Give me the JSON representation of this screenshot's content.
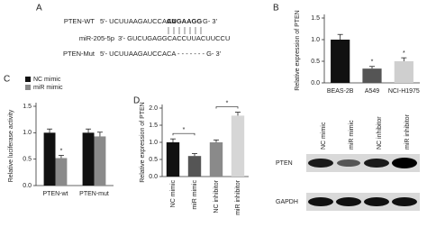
{
  "panel_a": {
    "label": "A",
    "rows": [
      {
        "name": "PTEN-WT",
        "parts": [
          "5'- UCUUAAGAUCCACA",
          "AUGAAGG",
          "G- 3'"
        ]
      },
      {
        "name": "miR-205-5p",
        "parts": [
          "3'- GUCUGAGGCACCUUACUUCCU"
        ]
      },
      {
        "name": "PTEN-Mut",
        "parts": [
          "5'- UCUUAAGAUCCACA - - - - - - - G- 3'"
        ]
      }
    ]
  },
  "chart_data": [
    {
      "type": "bar",
      "label": "B",
      "ylabel": "Relative expression of PTEN",
      "categories": [
        "BEAS-2B",
        "A549",
        "NCI-H1975"
      ],
      "values": [
        1.0,
        0.33,
        0.5
      ],
      "errors": [
        0.12,
        0.05,
        0.08
      ],
      "colors": [
        "#111111",
        "#555555",
        "#cfcfcf"
      ],
      "ylim": [
        0,
        1.5
      ],
      "yticks": [
        {
          "value": 0,
          "label": "0.0"
        },
        {
          "value": 0.5,
          "label": "0.5"
        },
        {
          "value": 1,
          "label": "1.0"
        },
        {
          "value": 1.5,
          "label": "1.5"
        }
      ],
      "annotations": [
        {
          "text": "*",
          "category": "A549"
        },
        {
          "text": "*",
          "category": "NCI-H1975"
        }
      ]
    },
    {
      "type": "bar",
      "label": "C",
      "ylabel": "Relative luciferase activity",
      "categories": [
        "PTEN-wt",
        "PTEN-mut"
      ],
      "series": [
        {
          "name": "NC mimic",
          "color": "#111111",
          "values": [
            1.0,
            1.0
          ],
          "errors": [
            0.07,
            0.07
          ]
        },
        {
          "name": "miR mimic",
          "color": "#8a8a8a",
          "values": [
            0.52,
            0.93
          ],
          "errors": [
            0.05,
            0.08
          ]
        }
      ],
      "ylim": [
        0,
        1.5
      ],
      "yticks": [
        {
          "value": 0,
          "label": "0.0"
        },
        {
          "value": 0.5,
          "label": "0.5"
        },
        {
          "value": 1,
          "label": "1.0"
        },
        {
          "value": 1.5,
          "label": "1.5"
        }
      ],
      "legend": "top-left",
      "annotations": [
        {
          "text": "*",
          "category": "PTEN-wt",
          "series": "miR mimic"
        }
      ]
    },
    {
      "type": "bar",
      "label": "D",
      "ylabel": "Relative expression of PTEN",
      "categories": [
        "NC mimic",
        "miR mimic",
        "NC inhibitor",
        "miR inhibitor"
      ],
      "values": [
        1.0,
        0.6,
        1.0,
        1.78
      ],
      "errors": [
        0.1,
        0.07,
        0.07,
        0.1
      ],
      "colors": [
        "#111111",
        "#555555",
        "#8a8a8a",
        "#d6d6d6"
      ],
      "ylim": [
        0,
        2
      ],
      "yticks": [
        {
          "value": 0,
          "label": "0.0"
        },
        {
          "value": 0.5,
          "label": "0.5"
        },
        {
          "value": 1,
          "label": "1.0"
        },
        {
          "value": 1.5,
          "label": "1.5"
        },
        {
          "value": 2,
          "label": "2.0"
        }
      ],
      "brackets": [
        {
          "from": "NC mimic",
          "to": "miR mimic",
          "text": "*"
        },
        {
          "from": "NC inhibitor",
          "to": "miR inhibitor",
          "text": "*"
        }
      ]
    }
  ],
  "blot": {
    "columns": [
      "NC mimic",
      "miR mimic",
      "NC inhibitor",
      "miR inhibitor"
    ],
    "rows": [
      "PTEN",
      "GAPDH"
    ]
  }
}
